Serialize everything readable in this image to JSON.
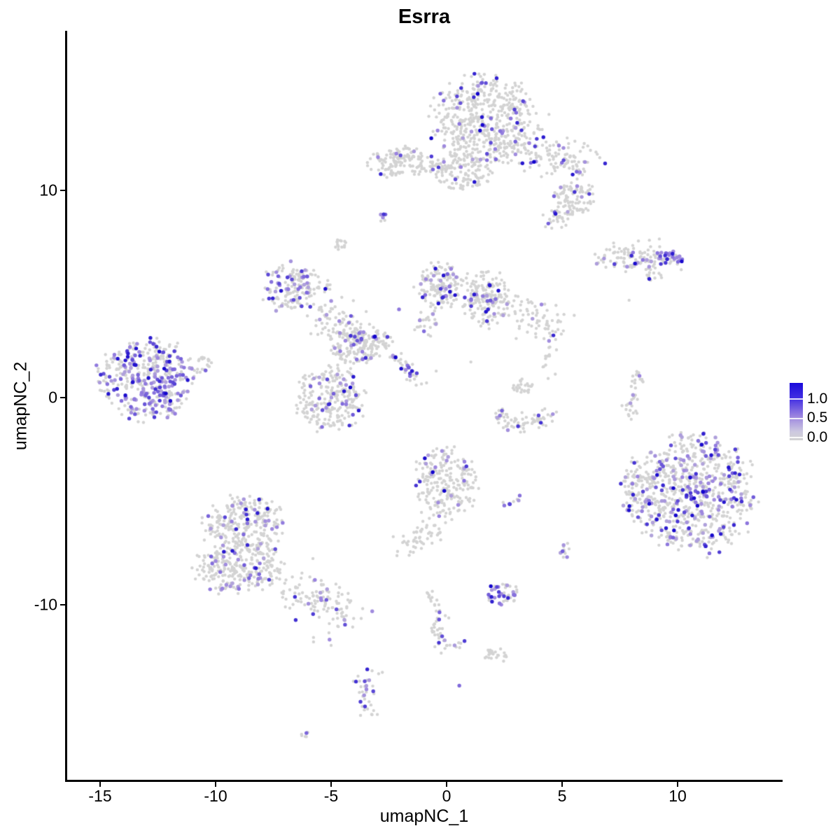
{
  "chart_data": {
    "type": "scatter",
    "title": "Esrra",
    "xlabel": "umapNC_1",
    "ylabel": "umapNC_2",
    "xlim": [
      -16.5,
      14.5
    ],
    "ylim": [
      -18.5,
      17.7
    ],
    "x_ticks": [
      -15,
      -10,
      -5,
      0,
      5,
      10
    ],
    "y_ticks": [
      -10,
      0,
      10
    ],
    "x_tick_labels": [
      "-15",
      "-10",
      "-5",
      "0",
      "5",
      "10"
    ],
    "y_tick_labels": [
      "10",
      "0",
      "-10"
    ],
    "grid": false,
    "legend_position": "right",
    "legend": {
      "labels": [
        "1.0",
        "0.5",
        "0.0"
      ],
      "values": [
        1.0,
        0.5,
        0.0
      ],
      "low_color": "#D3D3D3",
      "mid_color": "#9B84DF",
      "high_color": "#1203CC",
      "bar_top_color": "#1A0ADB"
    },
    "point_style": {
      "gray_color": "#D3D3D3",
      "gray_radius": 2.2,
      "expressed_radius": 2.7
    },
    "clusters": [
      {
        "name": "top-main",
        "shape": "blob",
        "cx": 1.6,
        "cy": 13.4,
        "rx": 2.25,
        "ry": 2.2,
        "n": 520,
        "frac": 0.09
      },
      {
        "name": "top-main-lower",
        "shape": "blob",
        "cx": 0.7,
        "cy": 10.9,
        "rx": 1.3,
        "ry": 0.9,
        "n": 120,
        "frac": 0.07
      },
      {
        "name": "top-arm",
        "shape": "path",
        "pts": [
          [
            3.2,
            12.2
          ],
          [
            6.0,
            11.1
          ]
        ],
        "w": 0.55,
        "n": 140,
        "frac": 0.08
      },
      {
        "name": "top-se-clump",
        "shape": "blob",
        "cx": 5.5,
        "cy": 9.6,
        "rx": 0.95,
        "ry": 0.85,
        "n": 90,
        "frac": 0.07
      },
      {
        "name": "top-tail",
        "shape": "blob",
        "cx": 4.7,
        "cy": 8.6,
        "rx": 0.6,
        "ry": 0.5,
        "n": 30,
        "frac": 0.06
      },
      {
        "name": "top-left-satellite",
        "shape": "blob",
        "cx": -2.1,
        "cy": 11.4,
        "rx": 1.4,
        "ry": 0.8,
        "n": 130,
        "frac": 0.06
      },
      {
        "name": "satellite-streak",
        "shape": "path",
        "pts": [
          [
            -1.0,
            11.2
          ],
          [
            -0.1,
            11.05
          ]
        ],
        "w": 0.2,
        "n": 20,
        "frac": 0.05
      },
      {
        "name": "tiny-blob-a",
        "shape": "blob",
        "cx": -2.8,
        "cy": 8.7,
        "rx": 0.25,
        "ry": 0.22,
        "n": 6,
        "frac": 0.35
      },
      {
        "name": "gray-blob-b",
        "shape": "blob",
        "cx": -4.6,
        "cy": 7.4,
        "rx": 0.3,
        "ry": 0.3,
        "n": 14,
        "frac": 0
      },
      {
        "name": "mid-left",
        "shape": "blob",
        "cx": -6.8,
        "cy": 5.3,
        "rx": 1.1,
        "ry": 1.2,
        "n": 135,
        "frac": 0.27
      },
      {
        "name": "mid-left-arm",
        "shape": "path",
        "pts": [
          [
            -6.3,
            5.6
          ],
          [
            -5.3,
            5.3
          ]
        ],
        "w": 0.3,
        "n": 30,
        "frac": 0.08
      },
      {
        "name": "bridge",
        "shape": "path",
        "pts": [
          [
            -5.7,
            4.2
          ],
          [
            -3.7,
            3.0
          ]
        ],
        "w": 0.5,
        "n": 100,
        "frac": 0.15
      },
      {
        "name": "hub",
        "shape": "blob",
        "cx": -4.0,
        "cy": 2.4,
        "rx": 0.95,
        "ry": 0.85,
        "n": 130,
        "frac": 0.13
      },
      {
        "name": "hub-east",
        "shape": "blob",
        "cx": -2.9,
        "cy": 2.8,
        "rx": 0.5,
        "ry": 0.5,
        "n": 35,
        "frac": 0.1
      },
      {
        "name": "lower-round",
        "shape": "blob",
        "cx": -5.0,
        "cy": 0.0,
        "rx": 1.6,
        "ry": 1.6,
        "n": 250,
        "frac": 0.12
      },
      {
        "name": "diag-streak",
        "shape": "path",
        "pts": [
          [
            -2.4,
            2.3
          ],
          [
            -1.2,
            0.7
          ]
        ],
        "w": 0.17,
        "n": 40,
        "frac": 0.3
      },
      {
        "name": "top-mid",
        "shape": "blob",
        "cx": -0.3,
        "cy": 5.4,
        "rx": 0.95,
        "ry": 1.15,
        "n": 150,
        "frac": 0.13
      },
      {
        "name": "top-mid-neck",
        "shape": "path",
        "pts": [
          [
            -0.6,
            4.3
          ],
          [
            -0.9,
            3.3
          ]
        ],
        "w": 0.25,
        "n": 25,
        "frac": 0.1
      },
      {
        "name": "right-center",
        "shape": "blob",
        "cx": 1.7,
        "cy": 4.8,
        "rx": 1.15,
        "ry": 1.35,
        "n": 180,
        "frac": 0.1
      },
      {
        "name": "bridge-arc",
        "shape": "path",
        "pts": [
          [
            2.9,
            4.2
          ],
          [
            4.8,
            3.4
          ]
        ],
        "w": 0.45,
        "n": 70,
        "frac": 0.08
      },
      {
        "name": "chain-down",
        "shape": "path",
        "pts": [
          [
            4.6,
            3.3
          ],
          [
            4.3,
            1.0
          ]
        ],
        "w": 0.2,
        "n": 18,
        "frac": 0.15
      },
      {
        "name": "arc-smile",
        "shape": "path",
        "pts": [
          [
            2.1,
            -0.6
          ],
          [
            2.6,
            -1.15
          ],
          [
            3.2,
            -1.3
          ],
          [
            3.9,
            -1.1
          ],
          [
            4.4,
            -0.55
          ]
        ],
        "w": 0.22,
        "n": 75,
        "frac": 0.1
      },
      {
        "name": "arc-clump",
        "shape": "blob",
        "cx": 3.3,
        "cy": 0.5,
        "rx": 0.45,
        "ry": 0.4,
        "n": 25,
        "frac": 0.08
      },
      {
        "name": "elongated-right",
        "shape": "path",
        "pts": [
          [
            6.6,
            6.6
          ],
          [
            8.2,
            6.75
          ],
          [
            9.3,
            6.6
          ]
        ],
        "w": 0.32,
        "n": 110,
        "frac": 0.12
      },
      {
        "name": "elongated-hot",
        "shape": "blob",
        "cx": 9.7,
        "cy": 6.65,
        "rx": 0.6,
        "ry": 0.42,
        "n": 34,
        "frac": 0.75,
        "vmin": 0.45,
        "vmax": 1.0
      },
      {
        "name": "elongated-tail",
        "shape": "path",
        "pts": [
          [
            8.6,
            6.0
          ],
          [
            9.3,
            5.7
          ]
        ],
        "w": 0.15,
        "n": 12,
        "frac": 0.25
      },
      {
        "name": "thin-vertical",
        "shape": "path",
        "pts": [
          [
            8.35,
            1.2
          ],
          [
            8.0,
            -0.3
          ],
          [
            7.9,
            -1.1
          ]
        ],
        "w": 0.14,
        "n": 34,
        "frac": 0.05
      },
      {
        "name": "bottom-right-main",
        "shape": "blob",
        "cx": 10.7,
        "cy": -4.6,
        "rx": 2.6,
        "ry": 2.9,
        "n": 720,
        "frac": 0.24
      },
      {
        "name": "bottom-right-fringe",
        "shape": "blob",
        "cx": 8.2,
        "cy": -4.4,
        "rx": 0.6,
        "ry": 1.6,
        "n": 90,
        "frac": 0.13
      },
      {
        "name": "mid-round",
        "shape": "blob",
        "cx": 0.0,
        "cy": -4.1,
        "rx": 1.35,
        "ry": 1.7,
        "n": 220,
        "frac": 0.1
      },
      {
        "name": "mid-tail",
        "shape": "path",
        "pts": [
          [
            -0.5,
            -5.9
          ],
          [
            -1.8,
            -7.4
          ]
        ],
        "w": 0.35,
        "n": 55,
        "frac": 0.03
      },
      {
        "name": "mini-streak",
        "shape": "path",
        "pts": [
          [
            2.3,
            -5.2
          ],
          [
            3.2,
            -4.8
          ]
        ],
        "w": 0.12,
        "n": 8,
        "frac": 0.5
      },
      {
        "name": "bottom-left-top",
        "shape": "blob",
        "cx": -8.7,
        "cy": -6.1,
        "rx": 1.8,
        "ry": 1.4,
        "n": 270,
        "frac": 0.13
      },
      {
        "name": "bottom-left-low",
        "shape": "blob",
        "cx": -9.0,
        "cy": -8.2,
        "rx": 1.9,
        "ry": 1.25,
        "n": 270,
        "frac": 0.13
      },
      {
        "name": "bottom-left-tail",
        "shape": "path",
        "pts": [
          [
            -6.6,
            -9.2
          ],
          [
            -4.1,
            -10.5
          ]
        ],
        "w": 0.55,
        "n": 120,
        "frac": 0.1
      },
      {
        "name": "wiggle-streak",
        "shape": "path",
        "pts": [
          [
            -0.85,
            -9.2
          ],
          [
            -0.5,
            -10.1
          ],
          [
            -0.25,
            -10.9
          ],
          [
            -0.45,
            -11.6
          ],
          [
            -0.1,
            -12.0
          ],
          [
            0.9,
            -11.8
          ]
        ],
        "w": 0.16,
        "n": 55,
        "frac": 0.12
      },
      {
        "name": "small-high",
        "shape": "blob",
        "cx": 2.5,
        "cy": -9.5,
        "rx": 0.8,
        "ry": 0.55,
        "n": 42,
        "frac": 0.38
      },
      {
        "name": "gray-hook",
        "shape": "blob",
        "cx": 2.1,
        "cy": -12.4,
        "rx": 0.65,
        "ry": 0.35,
        "n": 22,
        "frac": 0
      },
      {
        "name": "vertical-small",
        "shape": "path",
        "pts": [
          [
            -3.4,
            -13.3
          ],
          [
            -3.5,
            -15.3
          ]
        ],
        "w": 0.22,
        "n": 36,
        "frac": 0.3
      },
      {
        "name": "tiny-c",
        "shape": "path",
        "pts": [
          [
            -6.3,
            -16.3
          ],
          [
            -5.9,
            -16.0
          ]
        ],
        "w": 0.1,
        "n": 6,
        "frac": 0.3
      },
      {
        "name": "small-d",
        "shape": "blob",
        "cx": 5.1,
        "cy": -7.4,
        "rx": 0.3,
        "ry": 0.45,
        "n": 12,
        "frac": 0.2
      },
      {
        "name": "left-main",
        "shape": "blob",
        "cx": -13.0,
        "cy": 0.9,
        "rx": 2.1,
        "ry": 2.0,
        "n": 430,
        "frac": 0.42
      },
      {
        "name": "left-tip",
        "shape": "blob",
        "cx": -10.6,
        "cy": 1.6,
        "rx": 0.55,
        "ry": 0.4,
        "n": 22,
        "frac": 0.15
      }
    ],
    "singles": [
      [
        7.9,
        4.7,
        0
      ],
      [
        -2.06,
        4.26,
        0.55
      ],
      [
        -0.45,
        1.28,
        0
      ],
      [
        1.05,
        1.72,
        0
      ],
      [
        -12.15,
        0.2,
        1.0
      ],
      [
        -3.1,
        2.95,
        1.0
      ],
      [
        -0.6,
        -3.6,
        1.0
      ],
      [
        -0.1,
        -4.5,
        1.0
      ],
      [
        11.1,
        -4.55,
        1.0
      ],
      [
        9.5,
        -6.3,
        0.9
      ],
      [
        0.55,
        -13.9,
        0.6
      ],
      [
        -5.76,
        -11.79,
        0
      ],
      [
        -5.0,
        -11.96,
        0
      ],
      [
        8.35,
        1.05,
        0.5
      ]
    ]
  }
}
